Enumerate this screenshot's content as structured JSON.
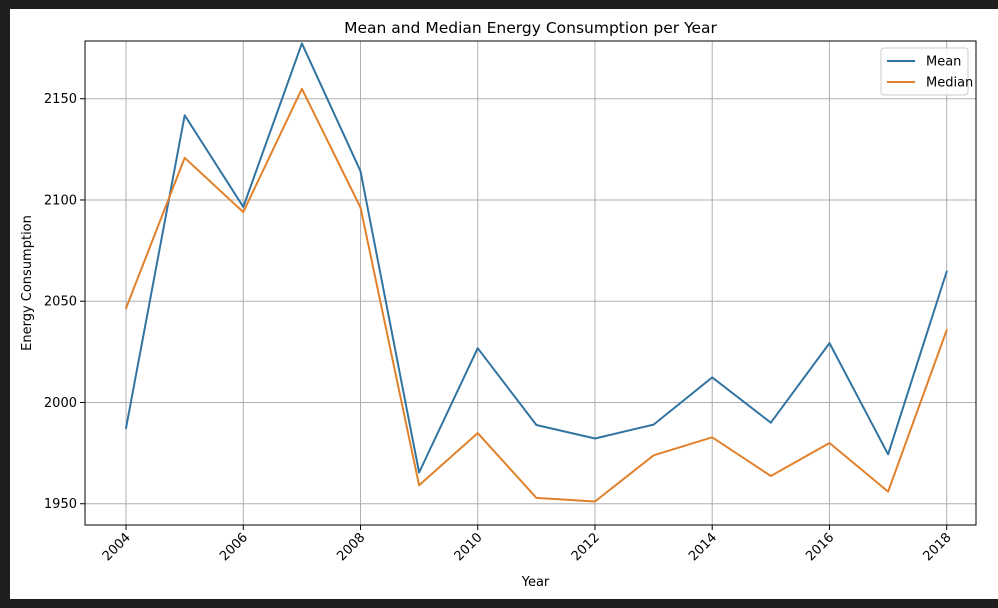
{
  "chart_data": {
    "type": "line",
    "title": "Mean and Median Energy Consumption per Year",
    "xlabel": "Year",
    "ylabel": "Energy Consumption",
    "x": [
      2004,
      2005,
      2006,
      2007,
      2008,
      2009,
      2010,
      2011,
      2012,
      2013,
      2014,
      2015,
      2016,
      2017,
      2018
    ],
    "xlim": [
      2003.3,
      2018.5
    ],
    "ylim": [
      1939.5,
      2178.5
    ],
    "xticks": [
      2004,
      2006,
      2008,
      2010,
      2012,
      2014,
      2016,
      2018
    ],
    "xtick_labels": [
      "2004",
      "2006",
      "2008",
      "2010",
      "2012",
      "2014",
      "2016",
      "2018"
    ],
    "yticks": [
      1950,
      2000,
      2050,
      2100,
      2150
    ],
    "ytick_labels": [
      "1950",
      "2000",
      "2050",
      "2100",
      "2150"
    ],
    "grid": true,
    "legend_position": "top-right",
    "series": [
      {
        "name": "Mean",
        "color": "#3274a1",
        "values": [
          1987.3,
          2141.8,
          2096.6,
          2177.3,
          2114.2,
          1965.4,
          2026.8,
          1988.9,
          1982.2,
          1989.1,
          2012.4,
          1990.0,
          2029.3,
          1974.4,
          2064.7
        ]
      },
      {
        "name": "Median",
        "color": "#e1812c",
        "values": [
          2046.5,
          2120.8,
          2094.0,
          2154.9,
          2096.3,
          1959.1,
          1984.9,
          1952.9,
          1951.1,
          1973.9,
          1982.8,
          1963.7,
          1980.0,
          1956.0,
          2035.7
        ]
      }
    ]
  }
}
